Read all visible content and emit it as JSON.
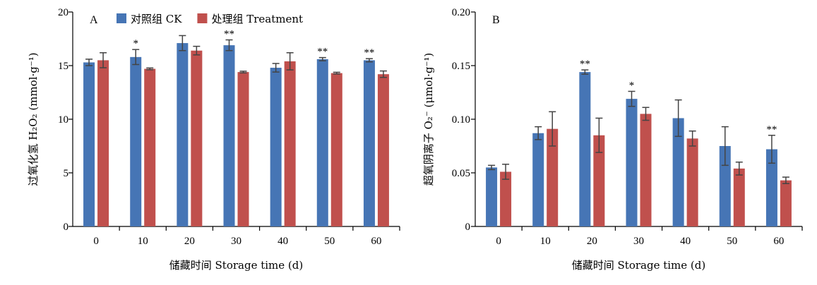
{
  "chart_data": [
    {
      "type": "bar",
      "panel": "A",
      "categories": [
        "0",
        "10",
        "20",
        "30",
        "40",
        "50",
        "60"
      ],
      "series": [
        {
          "name": "对照组 CK",
          "color": "#4675b5",
          "values": [
            15.3,
            15.8,
            17.1,
            16.9,
            14.8,
            15.6,
            15.5
          ],
          "errors": [
            0.3,
            0.7,
            0.7,
            0.5,
            0.4,
            0.15,
            0.15
          ]
        },
        {
          "name": "处理组 Treatment",
          "color": "#c0504d",
          "values": [
            15.5,
            14.7,
            16.4,
            14.4,
            15.4,
            14.3,
            14.2
          ],
          "errors": [
            0.7,
            0.08,
            0.4,
            0.08,
            0.8,
            0.08,
            0.3
          ]
        }
      ],
      "significance": [
        "",
        "*",
        "",
        "**",
        "",
        "**",
        "**"
      ],
      "ylim": [
        0,
        20
      ],
      "yticks": [
        "0",
        "5",
        "10",
        "15",
        "20"
      ],
      "xlabel": "储藏时间 Storage time (d)",
      "ylabel": "过氧化氢 H₂O₂ (mmol·g⁻¹)",
      "legend": "top"
    },
    {
      "type": "bar",
      "panel": "B",
      "categories": [
        "0",
        "10",
        "20",
        "30",
        "40",
        "50",
        "60"
      ],
      "series": [
        {
          "name": "对照组 CK",
          "color": "#4675b5",
          "values": [
            0.055,
            0.087,
            0.144,
            0.119,
            0.101,
            0.075,
            0.072
          ],
          "errors": [
            0.002,
            0.006,
            0.002,
            0.007,
            0.017,
            0.018,
            0.013
          ]
        },
        {
          "name": "处理组 Treatment",
          "color": "#c0504d",
          "values": [
            0.051,
            0.091,
            0.085,
            0.105,
            0.082,
            0.054,
            0.043
          ],
          "errors": [
            0.007,
            0.016,
            0.016,
            0.006,
            0.007,
            0.006,
            0.003
          ]
        }
      ],
      "significance": [
        "",
        "",
        "**",
        "*",
        "",
        "",
        "**"
      ],
      "ylim": [
        0,
        0.2
      ],
      "yticks": [
        "0",
        "0.05",
        "0.10",
        "0.15",
        "0.20"
      ],
      "xlabel": "储藏时间 Storage time (d)",
      "ylabel": "超氧阴离子 O₂⁻ (μmol·g⁻¹)"
    }
  ]
}
